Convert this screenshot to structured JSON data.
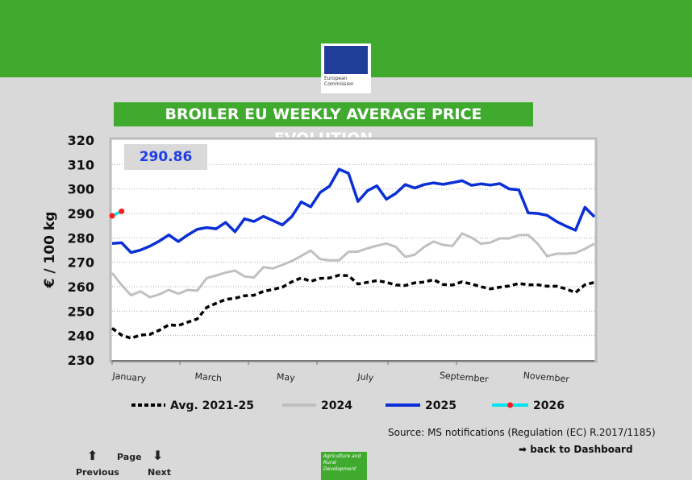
{
  "header": {
    "logo_text": [
      "European",
      "Commission"
    ]
  },
  "kpi": "290.86",
  "source": "Source: MS notifications (Regulation (EC) R.2017/1185)",
  "back": "back to Dashboard",
  "nav": {
    "page": "Page",
    "previous": "Previous",
    "next": "Next"
  },
  "footer_logo": "Agriculture and Rural Development",
  "chart_data": {
    "type": "line",
    "title": "BROILER EU WEEKLY AVERAGE PRICE EVOLUTION",
    "ylabel": "€ / 100 kg",
    "ylim": [
      230,
      320
    ],
    "yticks": [
      230,
      240,
      250,
      260,
      270,
      280,
      290,
      300,
      310,
      320
    ],
    "xlabels": [
      "January",
      "March",
      "May",
      "July",
      "September",
      "November"
    ],
    "weeks": 52,
    "grid": true,
    "legend": "bottom",
    "series": [
      {
        "name": "Avg. 2021-25",
        "color": "#000000",
        "dashed": true,
        "values": [
          243,
          240.2,
          238.9,
          240.2,
          240.5,
          242.2,
          244.4,
          244.1,
          245.5,
          246.8,
          251.5,
          253.2,
          254.8,
          255.3,
          256.3,
          256.5,
          258.1,
          258.9,
          259.8,
          262,
          263.6,
          262.2,
          263.4,
          263.6,
          264.7,
          264.5,
          261.1,
          261.8,
          262.5,
          261.8,
          260.7,
          260.5,
          261.6,
          261.9,
          262.9,
          260.9,
          260.7,
          262,
          261.1,
          260,
          259.1,
          259.8,
          260.3,
          261.3,
          260.8,
          260.8,
          260.2,
          260.2,
          259.1,
          257.6,
          260.8,
          261.8
        ]
      },
      {
        "name": "2024",
        "color": "#c0c0c0",
        "values": [
          265.6,
          260.7,
          256.5,
          258.1,
          255.7,
          256.9,
          258.7,
          257.1,
          258.7,
          258.4,
          263.5,
          264.6,
          265.8,
          266.6,
          264.2,
          263.8,
          268,
          267.5,
          268.9,
          270.5,
          272.6,
          274.8,
          271.3,
          270.8,
          270.8,
          274.3,
          274.4,
          275.7,
          276.8,
          277.7,
          276.3,
          272.2,
          273.1,
          276.3,
          278.5,
          277.1,
          276.7,
          281.8,
          280.1,
          277.6,
          278.1,
          279.8,
          279.8,
          281.1,
          281.2,
          277.6,
          272.5,
          273.5,
          273.5,
          273.8,
          275.5,
          277.6
        ]
      },
      {
        "name": "2025",
        "color": "#0a2fd6",
        "values": [
          277.7,
          278,
          274,
          275,
          276.6,
          278.7,
          281.2,
          278.5,
          281.2,
          283.5,
          284.2,
          283.7,
          286.3,
          282.5,
          287.8,
          286.7,
          288.8,
          287.1,
          285.3,
          288.7,
          294.7,
          292.7,
          298.6,
          301.2,
          308.1,
          306.4,
          294.9,
          299.3,
          301.3,
          295.8,
          298.2,
          301.8,
          300.4,
          301.8,
          302.5,
          301.9,
          302.6,
          303.4,
          301.5,
          302.1,
          301.6,
          302.2,
          300,
          299.7,
          290.2,
          290,
          289.2,
          286.7,
          284.8,
          283.1,
          292.5,
          288.6
        ]
      },
      {
        "name": "2026",
        "color": "#00e5ee",
        "marker": "#ff1a1a",
        "values": [
          289,
          290.86
        ]
      }
    ]
  }
}
